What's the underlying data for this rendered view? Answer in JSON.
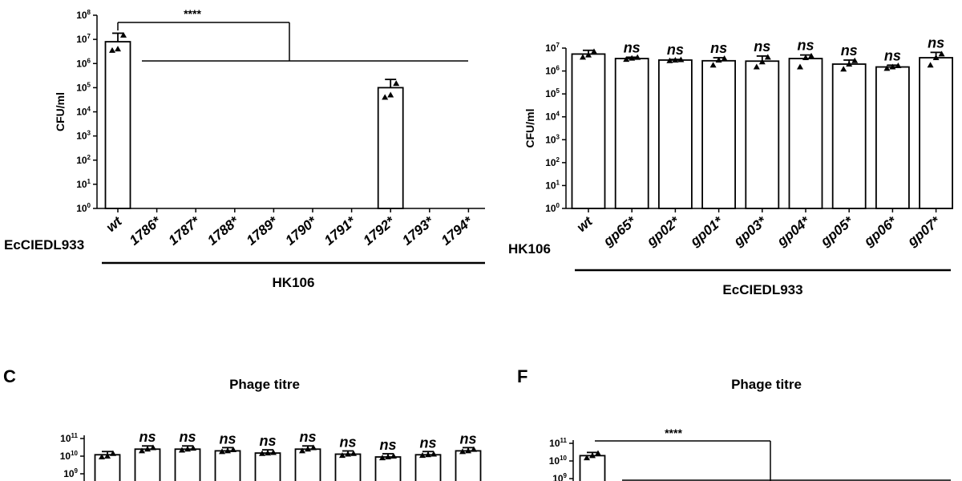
{
  "chart_data": [
    {
      "type": "bar",
      "panel": "",
      "title": "",
      "ylabel": "CFU/ml",
      "yscale": "log",
      "ylim": [
        1,
        100000000
      ],
      "yticks": [
        "10^0",
        "10^1",
        "10^2",
        "10^3",
        "10^4",
        "10^5",
        "10^6",
        "10^7",
        "10^8"
      ],
      "row_label": "EcCIEDL933",
      "group_label": "HK106",
      "categories": [
        "wt",
        "1786*",
        "1787*",
        "1788*",
        "1789*",
        "1790*",
        "1791*",
        "1792*",
        "1793*",
        "1794*"
      ],
      "values": [
        8000000,
        null,
        null,
        null,
        null,
        null,
        null,
        100000,
        null,
        null
      ],
      "error_upper": [
        18000000,
        null,
        null,
        null,
        null,
        null,
        null,
        220000,
        null,
        null
      ],
      "points": [
        [
          3500000,
          4000000,
          15000000
        ],
        [],
        [],
        [],
        [],
        [],
        [],
        [
          40000,
          50000,
          150000
        ],
        [],
        []
      ],
      "significance": {
        "label": "****",
        "from": "wt",
        "to": "1786*-1794*"
      }
    },
    {
      "type": "bar",
      "panel": "",
      "title": "",
      "ylabel": "CFU/ml",
      "yscale": "log",
      "ylim": [
        1,
        10000000
      ],
      "yticks": [
        "10^0",
        "10^1",
        "10^2",
        "10^3",
        "10^4",
        "10^5",
        "10^6",
        "10^7"
      ],
      "row_label": "HK106",
      "group_label": "EcCIEDL933",
      "categories": [
        "wt",
        "gp65*",
        "gp02*",
        "gp01*",
        "gp03*",
        "gp04*",
        "gp05*",
        "gp06*",
        "gp07*"
      ],
      "values": [
        5500000,
        3500000,
        3000000,
        2800000,
        2700000,
        3500000,
        2000000,
        1500000,
        3800000
      ],
      "error_upper": [
        8000000,
        4000000,
        3200000,
        3800000,
        4500000,
        5000000,
        3000000,
        1800000,
        6500000
      ],
      "points": [
        [
          4000000,
          5000000,
          7000000
        ],
        [
          3200000,
          3600000,
          3900000
        ],
        [
          2800000,
          3000000,
          3100000
        ],
        [
          1800000,
          3000000,
          3500000
        ],
        [
          1500000,
          2500000,
          4000000
        ],
        [
          1500000,
          3800000,
          4500000
        ],
        [
          1200000,
          2000000,
          2800000
        ],
        [
          1300000,
          1500000,
          1700000
        ],
        [
          1800000,
          3800000,
          5500000
        ]
      ],
      "annotations": [
        "",
        "ns",
        "ns",
        "ns",
        "ns",
        "ns",
        "ns",
        "ns",
        "ns"
      ]
    },
    {
      "type": "bar",
      "panel": "C",
      "title": "Phage titre",
      "ylabel": "",
      "yscale": "log",
      "yticks": [
        "10^9",
        "10^10",
        "10^11"
      ],
      "values": [
        12000000000,
        25000000000,
        25000000000,
        20000000000,
        15000000000,
        25000000000,
        13000000000,
        9000000000,
        12000000000,
        20000000000
      ],
      "points": [
        [
          9000000000,
          10000000000,
          14000000000
        ],
        [
          20000000000,
          25000000000,
          30000000000
        ],
        [
          22000000000,
          25000000000,
          28000000000
        ],
        [
          18000000000,
          20000000000,
          23000000000
        ],
        [
          14000000000,
          15000000000,
          16000000000
        ],
        [
          20000000000,
          25000000000,
          30000000000
        ],
        [
          11000000000,
          13000000000,
          14000000000
        ],
        [
          8000000000,
          9000000000,
          10000000000
        ],
        [
          11000000000,
          12000000000,
          13000000000
        ],
        [
          18000000000,
          20000000000,
          24000000000
        ]
      ],
      "annotations": [
        "",
        "ns",
        "ns",
        "ns",
        "ns",
        "ns",
        "ns",
        "ns",
        "ns",
        "ns"
      ]
    },
    {
      "type": "bar",
      "panel": "F",
      "title": "Phage titre",
      "ylabel": "",
      "yscale": "log",
      "yticks": [
        "10^9",
        "10^10",
        "10^11"
      ],
      "values": [
        20000000000
      ],
      "points": [
        [
          15000000000,
          20000000000,
          27000000000
        ]
      ],
      "significance": {
        "label": "****"
      }
    }
  ]
}
